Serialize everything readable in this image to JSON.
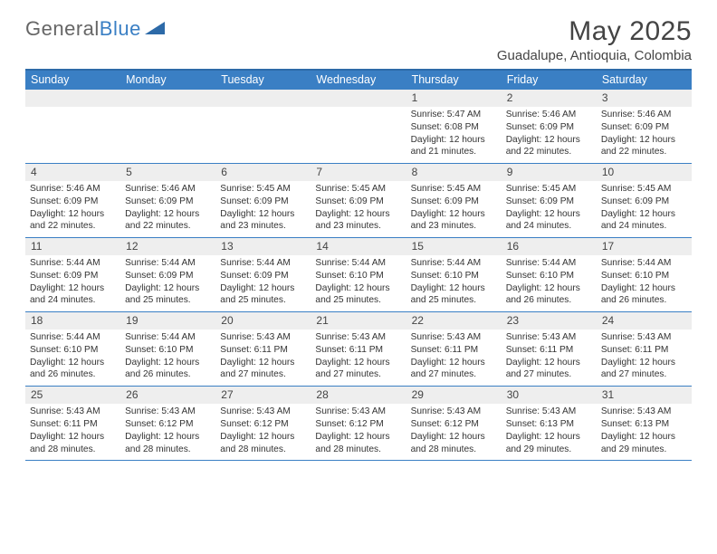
{
  "brand": {
    "part1": "General",
    "part2": "Blue"
  },
  "title": "May 2025",
  "location": "Guadalupe, Antioquia, Colombia",
  "colors": {
    "header_bg": "#3a7fc4",
    "border": "#2d6aa8",
    "daybar": "#eeeeee",
    "text": "#333333"
  },
  "weekdays": [
    "Sunday",
    "Monday",
    "Tuesday",
    "Wednesday",
    "Thursday",
    "Friday",
    "Saturday"
  ],
  "weeks": [
    [
      null,
      null,
      null,
      null,
      {
        "n": "1",
        "sr": "5:47 AM",
        "ss": "6:08 PM",
        "dl": "12 hours and 21 minutes."
      },
      {
        "n": "2",
        "sr": "5:46 AM",
        "ss": "6:09 PM",
        "dl": "12 hours and 22 minutes."
      },
      {
        "n": "3",
        "sr": "5:46 AM",
        "ss": "6:09 PM",
        "dl": "12 hours and 22 minutes."
      }
    ],
    [
      {
        "n": "4",
        "sr": "5:46 AM",
        "ss": "6:09 PM",
        "dl": "12 hours and 22 minutes."
      },
      {
        "n": "5",
        "sr": "5:46 AM",
        "ss": "6:09 PM",
        "dl": "12 hours and 22 minutes."
      },
      {
        "n": "6",
        "sr": "5:45 AM",
        "ss": "6:09 PM",
        "dl": "12 hours and 23 minutes."
      },
      {
        "n": "7",
        "sr": "5:45 AM",
        "ss": "6:09 PM",
        "dl": "12 hours and 23 minutes."
      },
      {
        "n": "8",
        "sr": "5:45 AM",
        "ss": "6:09 PM",
        "dl": "12 hours and 23 minutes."
      },
      {
        "n": "9",
        "sr": "5:45 AM",
        "ss": "6:09 PM",
        "dl": "12 hours and 24 minutes."
      },
      {
        "n": "10",
        "sr": "5:45 AM",
        "ss": "6:09 PM",
        "dl": "12 hours and 24 minutes."
      }
    ],
    [
      {
        "n": "11",
        "sr": "5:44 AM",
        "ss": "6:09 PM",
        "dl": "12 hours and 24 minutes."
      },
      {
        "n": "12",
        "sr": "5:44 AM",
        "ss": "6:09 PM",
        "dl": "12 hours and 25 minutes."
      },
      {
        "n": "13",
        "sr": "5:44 AM",
        "ss": "6:09 PM",
        "dl": "12 hours and 25 minutes."
      },
      {
        "n": "14",
        "sr": "5:44 AM",
        "ss": "6:10 PM",
        "dl": "12 hours and 25 minutes."
      },
      {
        "n": "15",
        "sr": "5:44 AM",
        "ss": "6:10 PM",
        "dl": "12 hours and 25 minutes."
      },
      {
        "n": "16",
        "sr": "5:44 AM",
        "ss": "6:10 PM",
        "dl": "12 hours and 26 minutes."
      },
      {
        "n": "17",
        "sr": "5:44 AM",
        "ss": "6:10 PM",
        "dl": "12 hours and 26 minutes."
      }
    ],
    [
      {
        "n": "18",
        "sr": "5:44 AM",
        "ss": "6:10 PM",
        "dl": "12 hours and 26 minutes."
      },
      {
        "n": "19",
        "sr": "5:44 AM",
        "ss": "6:10 PM",
        "dl": "12 hours and 26 minutes."
      },
      {
        "n": "20",
        "sr": "5:43 AM",
        "ss": "6:11 PM",
        "dl": "12 hours and 27 minutes."
      },
      {
        "n": "21",
        "sr": "5:43 AM",
        "ss": "6:11 PM",
        "dl": "12 hours and 27 minutes."
      },
      {
        "n": "22",
        "sr": "5:43 AM",
        "ss": "6:11 PM",
        "dl": "12 hours and 27 minutes."
      },
      {
        "n": "23",
        "sr": "5:43 AM",
        "ss": "6:11 PM",
        "dl": "12 hours and 27 minutes."
      },
      {
        "n": "24",
        "sr": "5:43 AM",
        "ss": "6:11 PM",
        "dl": "12 hours and 27 minutes."
      }
    ],
    [
      {
        "n": "25",
        "sr": "5:43 AM",
        "ss": "6:11 PM",
        "dl": "12 hours and 28 minutes."
      },
      {
        "n": "26",
        "sr": "5:43 AM",
        "ss": "6:12 PM",
        "dl": "12 hours and 28 minutes."
      },
      {
        "n": "27",
        "sr": "5:43 AM",
        "ss": "6:12 PM",
        "dl": "12 hours and 28 minutes."
      },
      {
        "n": "28",
        "sr": "5:43 AM",
        "ss": "6:12 PM",
        "dl": "12 hours and 28 minutes."
      },
      {
        "n": "29",
        "sr": "5:43 AM",
        "ss": "6:12 PM",
        "dl": "12 hours and 28 minutes."
      },
      {
        "n": "30",
        "sr": "5:43 AM",
        "ss": "6:13 PM",
        "dl": "12 hours and 29 minutes."
      },
      {
        "n": "31",
        "sr": "5:43 AM",
        "ss": "6:13 PM",
        "dl": "12 hours and 29 minutes."
      }
    ]
  ],
  "labels": {
    "sunrise": "Sunrise:",
    "sunset": "Sunset:",
    "daylight": "Daylight:"
  }
}
